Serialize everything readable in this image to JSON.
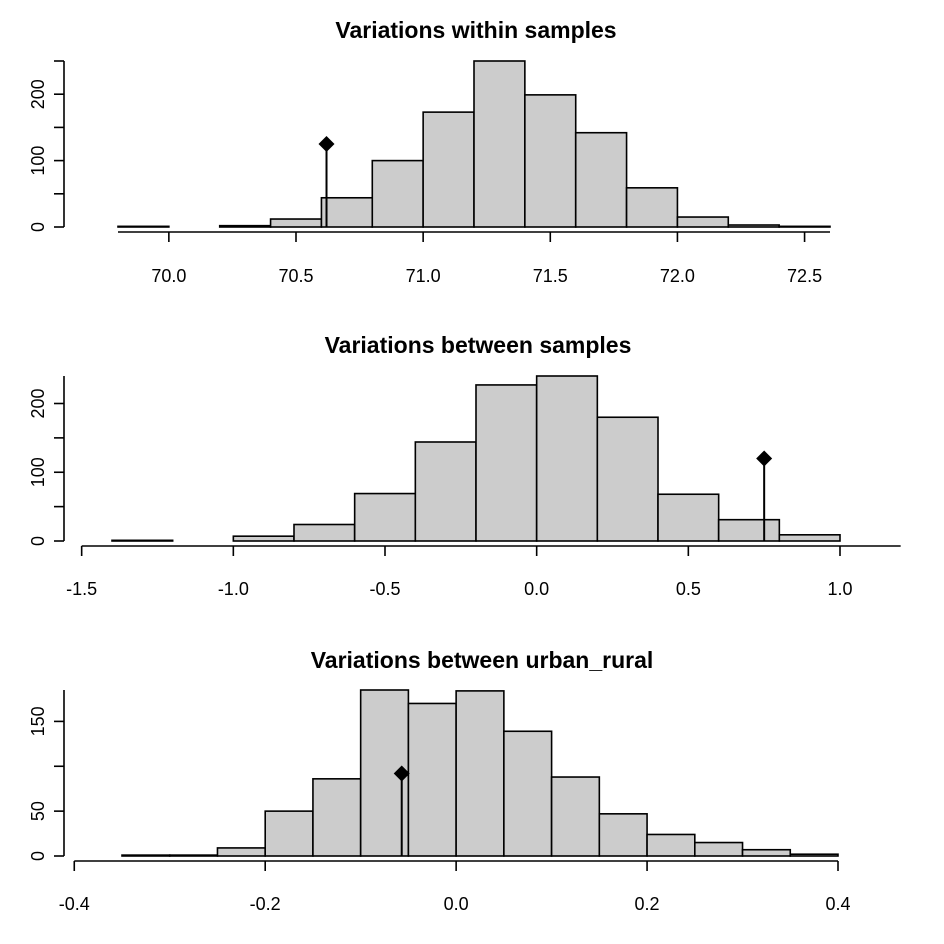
{
  "chart_data": [
    {
      "type": "bar",
      "title": "Variations within samples",
      "xlabel": "",
      "ylabel": "",
      "bin_edges": [
        69.8,
        70.0,
        70.2,
        70.4,
        70.6,
        70.8,
        71.0,
        71.2,
        71.4,
        71.6,
        71.8,
        72.0,
        72.2,
        72.4,
        72.6
      ],
      "values": [
        1,
        0,
        2,
        12,
        44,
        100,
        173,
        250,
        199,
        142,
        59,
        15,
        3,
        1
      ],
      "xlim": [
        69.8,
        72.6
      ],
      "ylim": [
        0,
        250
      ],
      "xticks": [
        70.0,
        70.5,
        71.0,
        71.5,
        72.0,
        72.5
      ],
      "xtick_labels": [
        "70.0",
        "70.5",
        "71.0",
        "71.5",
        "72.0",
        "72.5"
      ],
      "yticks": [
        0,
        100,
        200
      ],
      "ytick_labels": [
        "0",
        "100",
        "200"
      ],
      "marker": {
        "x": 70.62,
        "y": 125
      }
    },
    {
      "type": "bar",
      "title": "Variations between samples",
      "xlabel": "",
      "ylabel": "",
      "bin_edges": [
        -1.4,
        -1.2,
        -1.0,
        -0.8,
        -0.6,
        -0.4,
        -0.2,
        0.0,
        0.2,
        0.4,
        0.6,
        0.8,
        1.0
      ],
      "values": [
        1,
        0,
        7,
        24,
        69,
        144,
        227,
        240,
        180,
        68,
        31,
        9
      ],
      "xlim": [
        -1.5,
        1.2
      ],
      "ylim": [
        0,
        240
      ],
      "xticks": [
        -1.5,
        -1.0,
        -0.5,
        0.0,
        0.5,
        1.0
      ],
      "xtick_labels": [
        "-1.5",
        "-1.0",
        "-0.5",
        "0.0",
        "0.5",
        "1.0"
      ],
      "yticks": [
        0,
        100,
        200
      ],
      "ytick_labels": [
        "0",
        "100",
        "200"
      ],
      "marker": {
        "x": 0.75,
        "y": 120
      }
    },
    {
      "type": "bar",
      "title": "Variations between urban_rural",
      "xlabel": "",
      "ylabel": "",
      "bin_edges": [
        -0.35,
        -0.3,
        -0.25,
        -0.2,
        -0.15,
        -0.1,
        -0.05,
        0.0,
        0.05,
        0.1,
        0.15,
        0.2,
        0.25,
        0.3,
        0.35,
        0.4
      ],
      "values": [
        1,
        1,
        9,
        50,
        86,
        185,
        170,
        184,
        139,
        88,
        47,
        24,
        15,
        7,
        2
      ],
      "xlim": [
        -0.4,
        0.4
      ],
      "ylim": [
        0,
        185
      ],
      "xticks": [
        -0.4,
        -0.2,
        0.0,
        0.2,
        0.4
      ],
      "xtick_labels": [
        "-0.4",
        "-0.2",
        "0.0",
        "0.2",
        "0.4"
      ],
      "yticks": [
        0,
        50,
        150
      ],
      "ytick_labels": [
        "0",
        "50",
        "150"
      ],
      "marker": {
        "x": -0.057,
        "y": 92
      }
    }
  ]
}
